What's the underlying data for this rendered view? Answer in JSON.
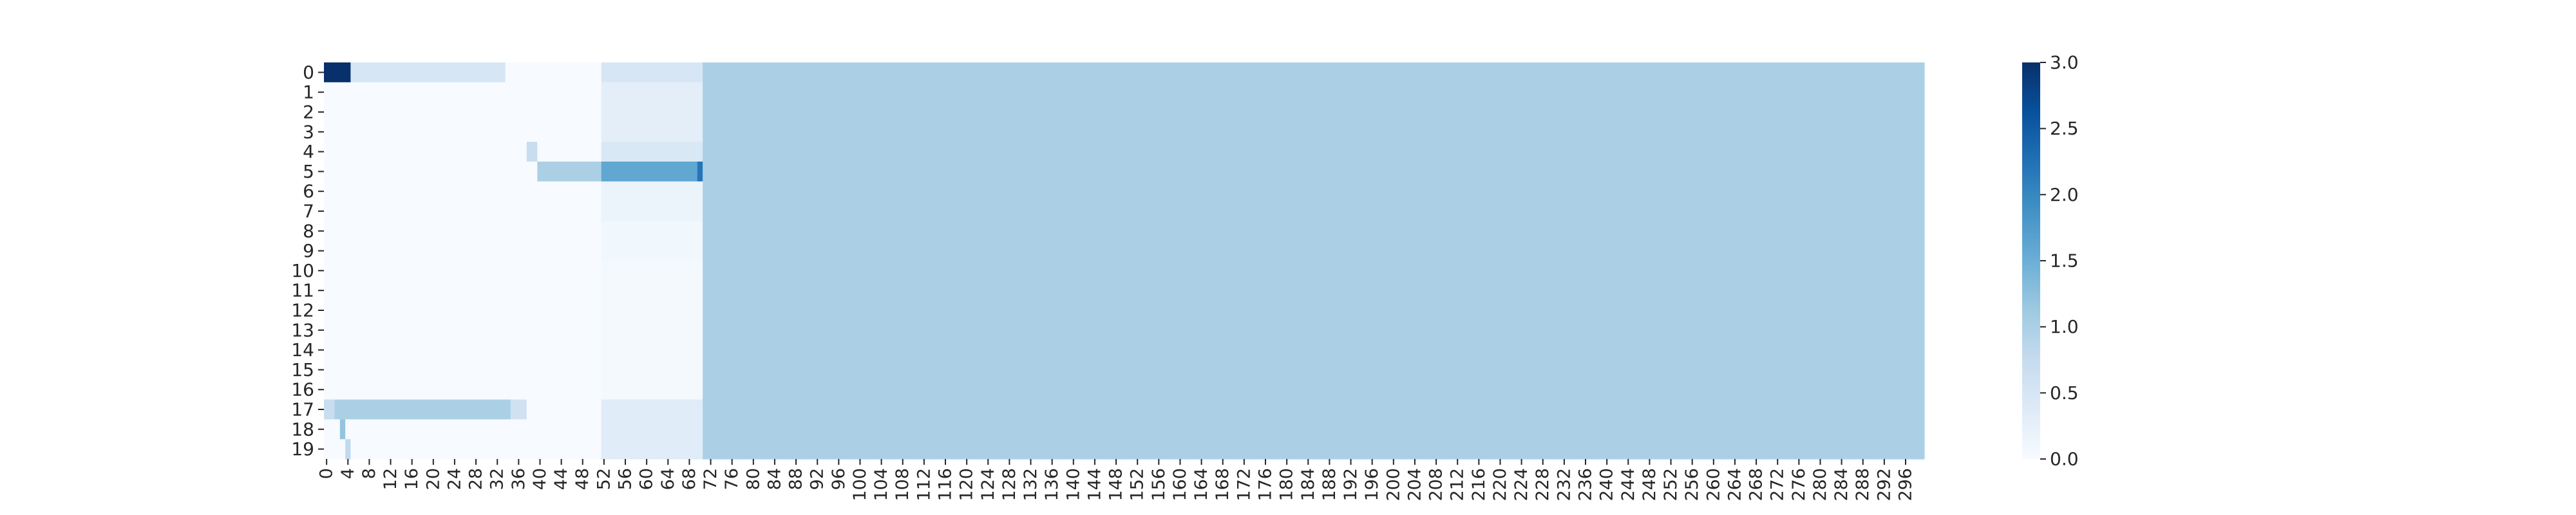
{
  "chart_data": {
    "type": "heatmap",
    "title": "",
    "xlabel": "",
    "ylabel": "",
    "n_cols": 300,
    "n_rows": 20,
    "x_tick_step": 4,
    "y_tick_step": 1,
    "colormap": "Blues",
    "vmin": 0.0,
    "vmax": 3.0,
    "colorbar_ticks": [
      "0.0",
      "0.5",
      "1.0",
      "1.5",
      "2.0",
      "2.5",
      "3.0"
    ],
    "colorbar_values": [
      0.0,
      0.5,
      1.0,
      1.5,
      2.0,
      2.5,
      3.0
    ],
    "default_value": 1.0,
    "regions": [
      {
        "rows": [
          0,
          19
        ],
        "cols": [
          0,
          71
        ],
        "value": 0.0
      },
      {
        "rows": [
          0,
          19
        ],
        "cols": [
          52,
          71
        ],
        "value": 0.25
      },
      {
        "rows": [
          0,
          0
        ],
        "cols": [
          0,
          4
        ],
        "value": 3.0
      },
      {
        "rows": [
          0,
          0
        ],
        "cols": [
          5,
          33
        ],
        "value": 0.5
      },
      {
        "rows": [
          0,
          0
        ],
        "cols": [
          52,
          70
        ],
        "value": 0.5
      },
      {
        "rows": [
          0,
          0
        ],
        "cols": [
          194,
          233
        ],
        "value": 1.3
      },
      {
        "rows": [
          1,
          3
        ],
        "cols": [
          52,
          70
        ],
        "value": 0.3
      },
      {
        "rows": [
          4,
          4
        ],
        "cols": [
          38,
          39
        ],
        "value": 0.7
      },
      {
        "rows": [
          4,
          4
        ],
        "cols": [
          52,
          70
        ],
        "value": 0.45
      },
      {
        "rows": [
          5,
          5
        ],
        "cols": [
          40,
          51
        ],
        "value": 1.0
      },
      {
        "rows": [
          5,
          5
        ],
        "cols": [
          52,
          70
        ],
        "value": 1.6
      },
      {
        "rows": [
          5,
          5
        ],
        "cols": [
          70,
          70
        ],
        "value": 2.2
      },
      {
        "rows": [
          5,
          5
        ],
        "cols": [
          71,
          73
        ],
        "value": 1.3
      },
      {
        "rows": [
          6,
          7
        ],
        "cols": [
          52,
          70
        ],
        "value": 0.18
      },
      {
        "rows": [
          8,
          9
        ],
        "cols": [
          52,
          70
        ],
        "value": 0.1
      },
      {
        "rows": [
          10,
          16
        ],
        "cols": [
          52,
          70
        ],
        "value": 0.05
      },
      {
        "rows": [
          17,
          17
        ],
        "cols": [
          0,
          1
        ],
        "value": 0.7
      },
      {
        "rows": [
          17,
          17
        ],
        "cols": [
          2,
          34
        ],
        "value": 1.0
      },
      {
        "rows": [
          17,
          17
        ],
        "cols": [
          35,
          37
        ],
        "value": 0.6
      },
      {
        "rows": [
          17,
          19
        ],
        "cols": [
          52,
          70
        ],
        "value": 0.35
      },
      {
        "rows": [
          18,
          18
        ],
        "cols": [
          3,
          3
        ],
        "value": 1.2
      },
      {
        "rows": [
          18,
          18
        ],
        "cols": [
          73,
          193
        ],
        "value": 1.1
      },
      {
        "rows": [
          18,
          18
        ],
        "cols": [
          234,
          299
        ],
        "value": 1.05
      },
      {
        "rows": [
          19,
          19
        ],
        "cols": [
          4,
          4
        ],
        "value": 0.8
      },
      {
        "rows": [
          0,
          19
        ],
        "cols": [
          71,
          299
        ],
        "value": 1.0
      }
    ]
  }
}
